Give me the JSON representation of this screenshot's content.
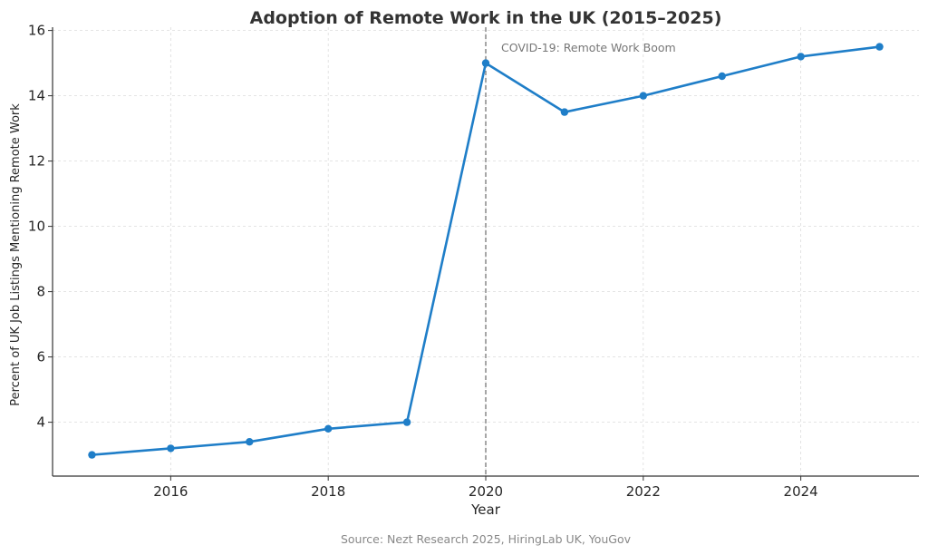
{
  "chart_data": {
    "type": "line",
    "title": "Adoption of Remote Work in the UK (2015–2025)",
    "xlabel": "Year",
    "ylabel": "Percent of UK Job Listings Mentioning Remote Work",
    "x": [
      2015,
      2016,
      2017,
      2018,
      2019,
      2020,
      2021,
      2022,
      2023,
      2024,
      2025
    ],
    "series": [
      {
        "values": [
          3.0,
          3.2,
          3.4,
          3.8,
          4.0,
          15.0,
          13.5,
          14.0,
          14.6,
          15.2,
          15.5
        ],
        "color": "#1f7ec8"
      }
    ],
    "xlim": [
      2014.5,
      2025.5
    ],
    "ylim": [
      2.35,
      16.1
    ],
    "xticks": [
      2016,
      2018,
      2020,
      2022,
      2024
    ],
    "yticks": [
      4,
      6,
      8,
      10,
      12,
      14,
      16
    ],
    "grid": true,
    "annotations": [
      {
        "x": 2020,
        "text": "COVID-19: Remote Work Boom",
        "line_style": "dashed",
        "color": "#777777"
      }
    ],
    "source_note": "Source: Nezt Research 2025, HiringLab UK, YouGov"
  }
}
